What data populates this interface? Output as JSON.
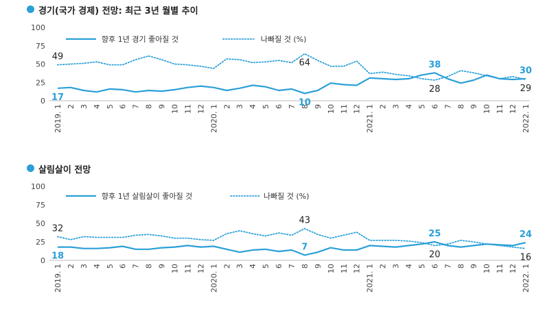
{
  "chart_data": [
    {
      "type": "line",
      "title": "경기(국가 경제) 전망: 최근 3년 월별 추이",
      "ylim": [
        0,
        100
      ],
      "yticks": [
        "0",
        "25",
        "50",
        "75",
        "100"
      ],
      "grid": false,
      "legend_position": "top",
      "x_tick_labels": [
        "2019. 1",
        "2",
        "3",
        "4",
        "5",
        "6",
        "7",
        "8",
        "9",
        "10",
        "11",
        "12",
        "2020. 1",
        "2",
        "3",
        "4",
        "5",
        "6",
        "7",
        "8",
        "9",
        "10",
        "11",
        "12",
        "2021. 1",
        "2",
        "3",
        "4",
        "5",
        "6",
        "7",
        "8",
        "9",
        "10",
        "11",
        "12",
        "2022. 1"
      ],
      "series": [
        {
          "name": "향후 1년 경기 좋아질 것",
          "style": "solid",
          "color": "#2a9fd8",
          "values": [
            17,
            18,
            14,
            12,
            16,
            15,
            12,
            14,
            13,
            15,
            18,
            20,
            18,
            14,
            17,
            21,
            19,
            14,
            16,
            10,
            14,
            24,
            22,
            21,
            31,
            30,
            29,
            30,
            35,
            38,
            30,
            24,
            28,
            35,
            30,
            29,
            30
          ]
        },
        {
          "name": "나빠질 것 (%)",
          "style": "dotted",
          "color": "#2a9fd8",
          "values": [
            49,
            50,
            51,
            53,
            49,
            49,
            56,
            61,
            56,
            50,
            49,
            47,
            44,
            57,
            56,
            52,
            53,
            55,
            52,
            64,
            55,
            47,
            47,
            54,
            37,
            39,
            36,
            34,
            30,
            28,
            33,
            41,
            38,
            34,
            30,
            33,
            29
          ]
        }
      ],
      "data_labels": [
        {
          "series": 0,
          "index": 0,
          "text": "17",
          "pos": "below"
        },
        {
          "series": 1,
          "index": 0,
          "text": "49",
          "pos": "above"
        },
        {
          "series": 1,
          "index": 19,
          "text": "64",
          "pos": "below"
        },
        {
          "series": 0,
          "index": 19,
          "text": "10",
          "pos": "below"
        },
        {
          "series": 0,
          "index": 29,
          "text": "38",
          "pos": "above"
        },
        {
          "series": 1,
          "index": 29,
          "text": "28",
          "pos": "below"
        },
        {
          "series": 0,
          "index": 36,
          "text": "30",
          "pos": "above"
        },
        {
          "series": 1,
          "index": 36,
          "text": "29",
          "pos": "below"
        }
      ]
    },
    {
      "type": "line",
      "title": "살림살이 전망",
      "ylim": [
        0,
        100
      ],
      "yticks": [
        "0",
        "25",
        "50",
        "75",
        "100"
      ],
      "grid": false,
      "legend_position": "top",
      "x_tick_labels": [
        "2019. 1",
        "2",
        "3",
        "4",
        "5",
        "6",
        "7",
        "8",
        "9",
        "10",
        "11",
        "12",
        "2020. 1",
        "2",
        "3",
        "4",
        "5",
        "6",
        "7",
        "8",
        "9",
        "10",
        "11",
        "12",
        "2021. 1",
        "2",
        "3",
        "4",
        "5",
        "6",
        "7",
        "8",
        "9",
        "10",
        "11",
        "12",
        "2022. 1"
      ],
      "series": [
        {
          "name": "향후 1년 살림살이 좋아질 것",
          "style": "solid",
          "color": "#2a9fd8",
          "values": [
            18,
            18,
            16,
            16,
            17,
            19,
            15,
            15,
            17,
            18,
            20,
            18,
            19,
            15,
            11,
            14,
            15,
            12,
            14,
            7,
            11,
            17,
            14,
            14,
            20,
            19,
            18,
            20,
            22,
            25,
            20,
            18,
            20,
            22,
            21,
            20,
            24
          ]
        },
        {
          "name": "나빠질 것 (%)",
          "style": "dotted",
          "color": "#2a9fd8",
          "values": [
            32,
            28,
            32,
            31,
            31,
            31,
            34,
            35,
            33,
            30,
            30,
            28,
            27,
            36,
            40,
            36,
            33,
            37,
            34,
            43,
            35,
            30,
            34,
            38,
            27,
            27,
            27,
            26,
            24,
            20,
            22,
            27,
            25,
            22,
            20,
            18,
            16
          ]
        }
      ],
      "data_labels": [
        {
          "series": 1,
          "index": 0,
          "text": "32",
          "pos": "above"
        },
        {
          "series": 0,
          "index": 0,
          "text": "18",
          "pos": "below"
        },
        {
          "series": 1,
          "index": 19,
          "text": "43",
          "pos": "above"
        },
        {
          "series": 0,
          "index": 19,
          "text": "7",
          "pos": "above"
        },
        {
          "series": 0,
          "index": 29,
          "text": "25",
          "pos": "above"
        },
        {
          "series": 1,
          "index": 29,
          "text": "20",
          "pos": "below"
        },
        {
          "series": 0,
          "index": 36,
          "text": "24",
          "pos": "above"
        },
        {
          "series": 1,
          "index": 36,
          "text": "16",
          "pos": "below"
        }
      ]
    }
  ]
}
